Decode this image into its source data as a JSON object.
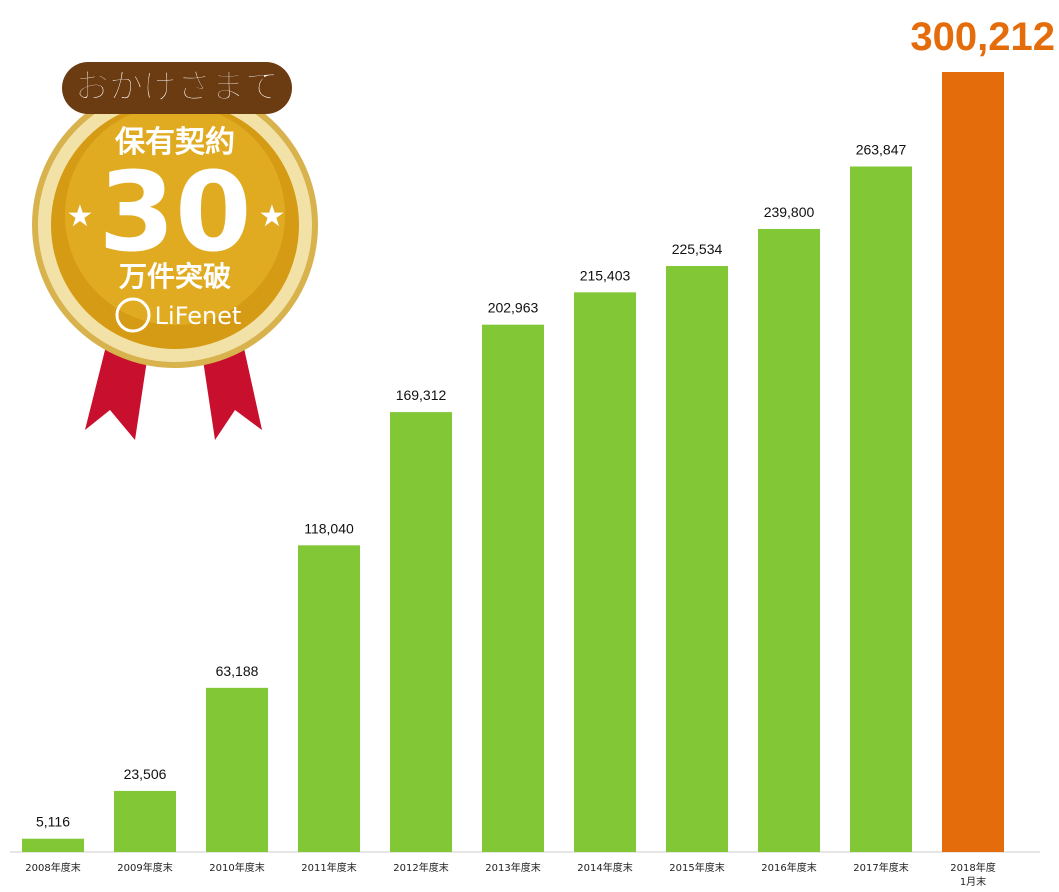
{
  "chart_data": {
    "type": "bar",
    "categories": [
      "2008年度末",
      "2009年度末",
      "2010年度末",
      "2011年度末",
      "2012年度末",
      "2013年度末",
      "2014年度末",
      "2015年度末",
      "2016年度末",
      "2017年度末",
      "2018年度\n1月末"
    ],
    "values": [
      5116,
      23506,
      63188,
      118040,
      169312,
      202963,
      215403,
      225534,
      239800,
      263847,
      300212
    ],
    "value_labels": [
      "5,116",
      "23,506",
      "63,188",
      "118,040",
      "169,312",
      "202,963",
      "215,403",
      "225,534",
      "239,800",
      "263,847",
      "300,212"
    ],
    "colors": [
      "#82c736",
      "#82c736",
      "#82c736",
      "#82c736",
      "#82c736",
      "#82c736",
      "#82c736",
      "#82c736",
      "#82c736",
      "#82c736",
      "#e46c0a"
    ]
  },
  "badge": {
    "banner": "おかげさまで",
    "line1": "保有契約",
    "number": "30",
    "line2": "万件突破",
    "brand": "LiFenet"
  }
}
